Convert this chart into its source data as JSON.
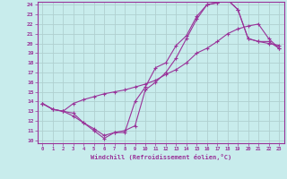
{
  "xlabel": "Windchill (Refroidissement éolien,°C)",
  "ylabel": "",
  "xlim": [
    -0.5,
    23.5
  ],
  "ylim": [
    9.7,
    24.3
  ],
  "xticks": [
    0,
    1,
    2,
    3,
    4,
    5,
    6,
    7,
    8,
    9,
    10,
    11,
    12,
    13,
    14,
    15,
    16,
    17,
    18,
    19,
    20,
    21,
    22,
    23
  ],
  "yticks": [
    10,
    11,
    12,
    13,
    14,
    15,
    16,
    17,
    18,
    19,
    20,
    21,
    22,
    23,
    24
  ],
  "bg_color": "#c8ecec",
  "grid_color": "#b0d0d0",
  "line_color": "#993399",
  "line1_x": [
    0,
    1,
    2,
    3,
    4,
    5,
    6,
    7,
    8,
    9,
    10,
    11,
    12,
    13,
    14,
    15,
    16,
    17,
    18,
    19,
    20,
    21,
    22,
    23
  ],
  "line1_y": [
    13.8,
    13.2,
    13.0,
    13.8,
    14.2,
    14.5,
    14.8,
    15.0,
    15.2,
    15.5,
    15.8,
    16.2,
    16.8,
    17.3,
    18.0,
    19.0,
    19.5,
    20.2,
    21.0,
    21.5,
    21.8,
    22.0,
    20.5,
    19.5
  ],
  "line2_x": [
    0,
    1,
    2,
    3,
    4,
    5,
    6,
    7,
    8,
    9,
    10,
    11,
    12,
    13,
    14,
    15,
    16,
    17,
    18,
    19,
    20,
    21,
    22,
    23
  ],
  "line2_y": [
    13.8,
    13.2,
    13.0,
    12.5,
    11.8,
    11.2,
    10.5,
    10.8,
    11.0,
    11.5,
    15.2,
    16.0,
    17.0,
    18.5,
    20.5,
    22.5,
    24.0,
    24.2,
    24.5,
    23.5,
    20.5,
    20.2,
    20.0,
    19.8
  ],
  "line3_x": [
    0,
    1,
    2,
    3,
    4,
    5,
    6,
    7,
    8,
    9,
    10,
    11,
    12,
    13,
    14,
    15,
    16,
    17,
    18,
    19,
    20,
    21,
    22,
    23
  ],
  "line3_y": [
    13.8,
    13.2,
    13.0,
    12.8,
    11.8,
    11.0,
    10.2,
    10.8,
    10.8,
    14.0,
    15.5,
    17.5,
    18.0,
    19.8,
    20.8,
    22.8,
    24.0,
    24.2,
    24.5,
    23.5,
    20.5,
    20.2,
    20.2,
    19.5
  ]
}
